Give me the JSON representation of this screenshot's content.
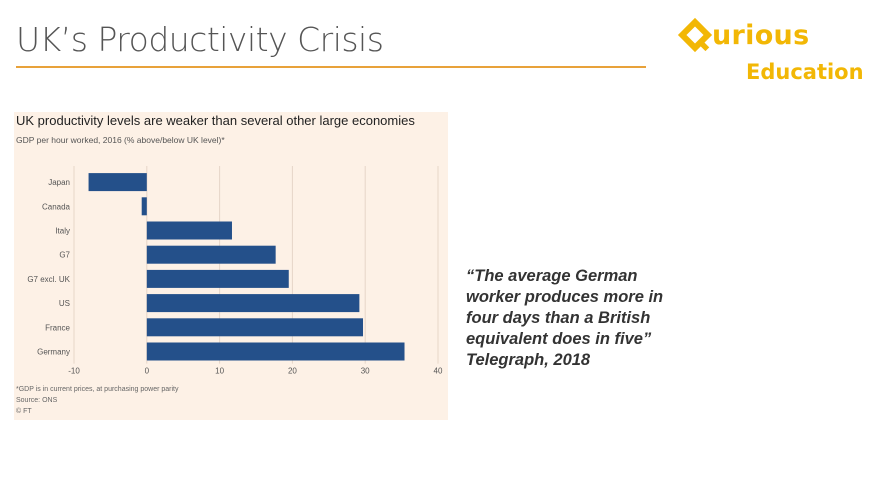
{
  "slide": {
    "title": "UK’s Productivity Crisis"
  },
  "logo": {
    "word": "urious",
    "sub": "Education",
    "color": "#f2b705"
  },
  "chart_data": {
    "type": "bar",
    "orientation": "horizontal",
    "title": "UK productivity levels are weaker than several other large economies",
    "subtitle": "GDP per hour worked, 2016 (% above/below UK level)*",
    "categories": [
      "Japan",
      "Canada",
      "Italy",
      "G7",
      "G7 excl. UK",
      "US",
      "France",
      "Germany"
    ],
    "values": [
      -8,
      -0.7,
      11.7,
      17.7,
      19.5,
      29.2,
      29.7,
      35.4
    ],
    "xlim": [
      -10,
      40
    ],
    "xticks": [
      "-10",
      "0",
      "10",
      "20",
      "30",
      "40"
    ],
    "grid": true,
    "bar_color": "#24508a",
    "footnotes": [
      "*GDP is in current prices, at purchasing power parity",
      "Source: ONS",
      "© FT"
    ]
  },
  "quote": {
    "lines": [
      "“The average German",
      "worker produces more in",
      "four days than a British",
      "equivalent does in five”",
      "Telegraph, 2018"
    ]
  }
}
